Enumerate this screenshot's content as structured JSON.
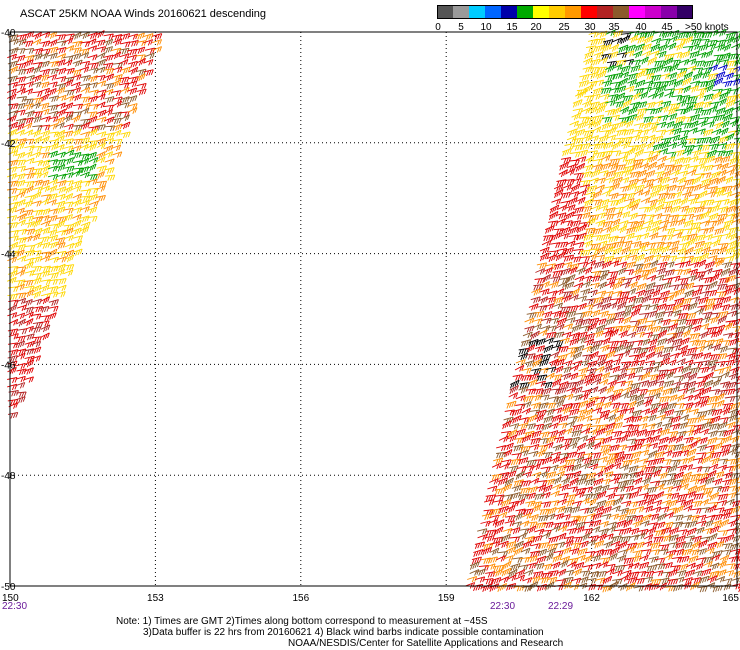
{
  "title": "ASCAT 25KM NOAA Winds 20160621 descending",
  "colorbar": {
    "colors": [
      "#555555",
      "#9a9a9a",
      "#00ccff",
      "#0066ff",
      "#0000aa",
      "#00aa00",
      "#ffff00",
      "#ffcc00",
      "#ff9900",
      "#ff0000",
      "#b22222",
      "#8b5a2b",
      "#ff00ff",
      "#cc00cc",
      "#8800aa",
      "#330066"
    ],
    "tick_labels": [
      "0",
      "5",
      "10",
      "15",
      "20",
      "25",
      "30",
      "35",
      "40",
      "45",
      ">50 knots"
    ]
  },
  "map": {
    "lon_labels": [
      "150",
      "153",
      "156",
      "159",
      "162",
      "165"
    ],
    "lat_labels": [
      "-40",
      "-42",
      "-44",
      "-46",
      "-48",
      "-50"
    ],
    "pass_times": [
      "22:30",
      "22:30",
      "22:29"
    ]
  },
  "notes": {
    "line1": "Note: 1) Times are GMT 2)Times along bottom correspond to measurement at ~45S",
    "line2": "3)Data buffer is 22 hrs from 20160621 4) Black wind barbs indicate possible contamination",
    "line3": "NOAA/NESDIS/Center for Satellite Applications and Research"
  },
  "wind_colors": {
    "yellow": "#ffd700",
    "orange": "#ff8c00",
    "red": "#e00000",
    "darkred": "#b22222",
    "brown": "#8b5a2b",
    "green": "#00a000",
    "blue": "#0000cc",
    "black": "#000000"
  }
}
